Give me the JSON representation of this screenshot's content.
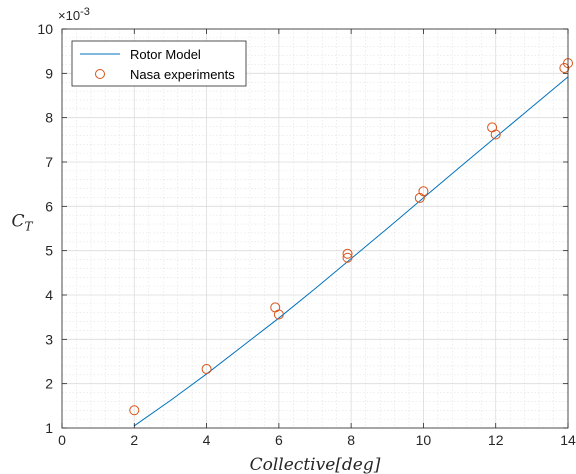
{
  "chart_data": {
    "type": "line",
    "title": "",
    "xlabel": "Collective[deg]",
    "ylabel": "C_T",
    "ylabel_base": "C",
    "ylabel_sub": "T",
    "y_exponent_label": "×10",
    "y_exponent_power": "-3",
    "xlim": [
      0,
      14
    ],
    "ylim": [
      1,
      10
    ],
    "xticks": [
      0,
      2,
      4,
      6,
      8,
      10,
      12,
      14
    ],
    "yticks": [
      1,
      2,
      3,
      4,
      5,
      6,
      7,
      8,
      9,
      10
    ],
    "grid": true,
    "minor_grid": true,
    "legend_position": "top-left",
    "series": [
      {
        "name": "Rotor Model",
        "style": "line",
        "color": "#0072BD",
        "x": [
          2,
          3,
          4,
          5,
          6,
          7,
          8,
          9,
          10,
          11,
          12,
          13,
          14
        ],
        "y": [
          1.05,
          1.62,
          2.22,
          2.85,
          3.48,
          4.14,
          4.82,
          5.5,
          6.19,
          6.88,
          7.56,
          8.24,
          8.92
        ]
      },
      {
        "name": "Nasa experiments",
        "style": "marker",
        "color": "#D95319",
        "x": [
          2.0,
          4.0,
          5.9,
          6.0,
          7.9,
          7.9,
          9.9,
          10.0,
          11.9,
          12.0,
          13.9,
          14.0
        ],
        "y": [
          1.4,
          2.33,
          3.72,
          3.56,
          4.93,
          4.84,
          6.19,
          6.34,
          7.78,
          7.62,
          9.12,
          9.23
        ]
      }
    ]
  }
}
